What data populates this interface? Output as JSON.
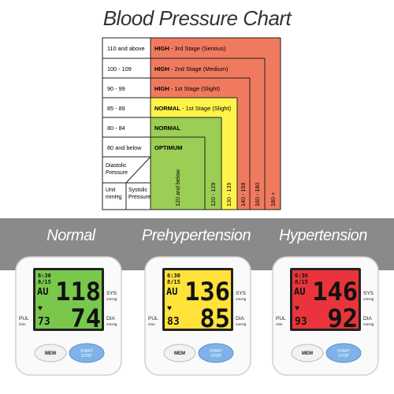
{
  "title": "Blood Pressure Chart",
  "chart": {
    "rows": [
      {
        "label": "110 and above",
        "band_title": "HIGH",
        "band_sub": " - 3rd Stage (Serious)",
        "color": "#f07a5e"
      },
      {
        "label": "100 - 109",
        "band_title": "HIGH",
        "band_sub": " - 2nd Stage (Medium)",
        "color": "#f07a5e"
      },
      {
        "label": "90 - 99",
        "band_title": "HIGH",
        "band_sub": " - 1st Stage (Slight)",
        "color": "#f07a5e"
      },
      {
        "label": "85 - 89",
        "band_title": "NORMAL",
        "band_sub": " - 1st Stage (Slight)",
        "color": "#fff34a"
      },
      {
        "label": "80 - 84",
        "band_title": "NORMAL",
        "band_sub": "",
        "color": "#9ccd54"
      },
      {
        "label": "80 and below",
        "band_title": "OPTIMUM",
        "band_sub": "",
        "color": "#9ccd54"
      }
    ],
    "diastolic_header": "Diastolic Pressure",
    "unit_header": "Unit mmHg",
    "systolic_header": "Systolic Pressure",
    "columns": [
      "120 and below",
      "120 - 129",
      "130 - 139",
      "140 - 159",
      "160 - 180",
      "180 +"
    ]
  },
  "labels": {
    "normal": "Normal",
    "prehypertension": "Prehypertension",
    "hypertension": "Hypertension"
  },
  "devices": [
    {
      "name": "normal",
      "screen": "#79c84c",
      "time": "6:30",
      "date": "8/15",
      "mode": "AU",
      "sys": "118",
      "dia": "74",
      "pul": "73",
      "sys_label": "SYS",
      "dia_label": "DIA",
      "pul_label": "PUL",
      "mmhg": "mmHg",
      "min": "/min",
      "mem": "MEM",
      "start_stop": "START STOP"
    },
    {
      "name": "prehypertension",
      "screen": "#ffe23a",
      "time": "6:30",
      "date": "8/15",
      "mode": "AU",
      "sys": "136",
      "dia": "85",
      "pul": "83",
      "sys_label": "SYS",
      "dia_label": "DIA",
      "pul_label": "PUL",
      "mmhg": "mmHg",
      "min": "/min",
      "mem": "MEM",
      "start_stop": "START STOP"
    },
    {
      "name": "hypertension",
      "screen": "#e8343a",
      "time": "6:30",
      "date": "8/15",
      "mode": "AU",
      "sys": "146",
      "dia": "92",
      "pul": "93",
      "sys_label": "SYS",
      "dia_label": "DIA",
      "pul_label": "PUL",
      "mmhg": "mmHg",
      "min": "/min",
      "mem": "MEM",
      "start_stop": "START STOP"
    }
  ]
}
